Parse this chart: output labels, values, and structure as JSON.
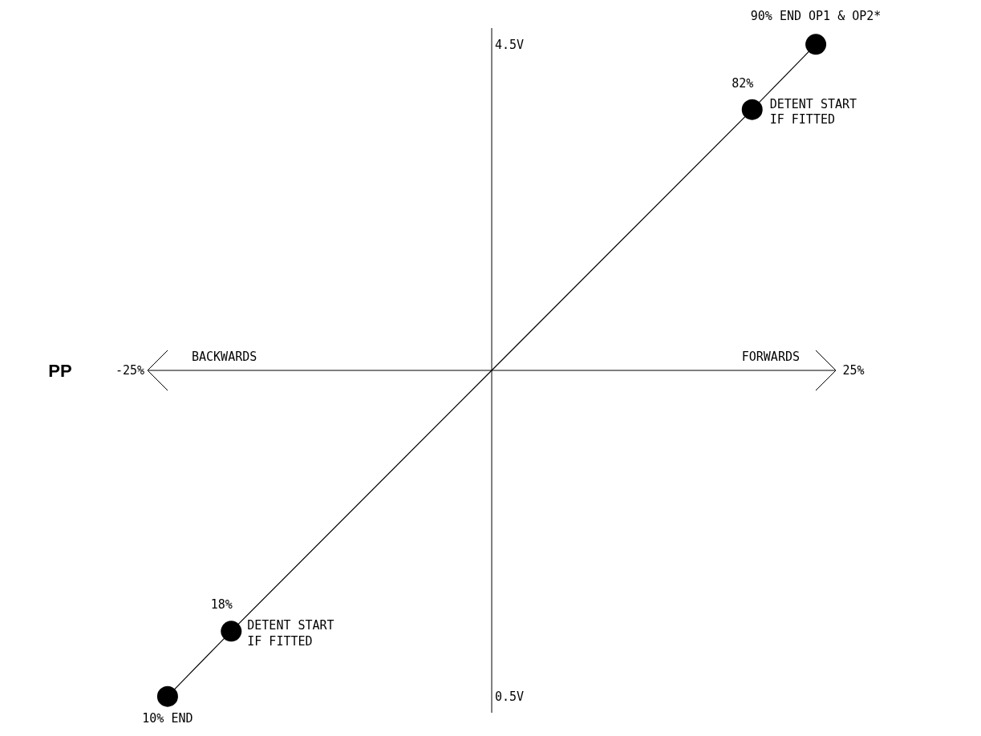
{
  "chart_data": {
    "type": "line",
    "ylabel": "PP",
    "xlim": [
      -25,
      25
    ],
    "xticks": [
      {
        "value": -25,
        "label": "-25%"
      },
      {
        "value": 25,
        "label": "25%"
      }
    ],
    "ylim": [
      0.4,
      4.6
    ],
    "yticks": [
      {
        "value": 0.5,
        "label": "0.5V"
      },
      {
        "value": 4.5,
        "label": "4.5V"
      }
    ],
    "series": [
      {
        "color": "#000000",
        "marker": "none",
        "x": [
          -22.4,
          -18,
          0,
          18,
          22.4
        ],
        "values": [
          0.5,
          0.9,
          2.5,
          4.1,
          4.5
        ]
      },
      {
        "type": "scatter",
        "color": "#000000",
        "marker": "circle",
        "x": [
          -22.4,
          -18,
          18,
          22.4
        ],
        "values": [
          0.5,
          0.9,
          4.1,
          4.5
        ]
      }
    ],
    "annotations": [
      {
        "text": "90% END OP1 & OP2*",
        "x": 22.4,
        "y": 4.5
      },
      {
        "text": "82%",
        "x": 18,
        "y": 4.1
      },
      {
        "text": "DETENT START\nIF FITTED",
        "x": 18,
        "y": 4.1
      },
      {
        "text": "18%",
        "x": -18,
        "y": 0.9
      },
      {
        "text": "DETENT START\nIF FITTED",
        "x": -18,
        "y": 0.9
      },
      {
        "text": "10% END",
        "x": -22.4,
        "y": 0.5
      },
      "BACKWARDS",
      "FORWARDS"
    ]
  }
}
